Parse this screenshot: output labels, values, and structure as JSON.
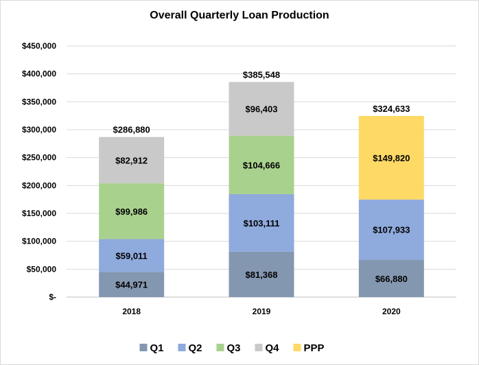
{
  "chart_data": {
    "type": "bar",
    "stacked": true,
    "title": "Overall Quarterly Loan Production",
    "categories": [
      "2018",
      "2019",
      "2020"
    ],
    "ylim": [
      0,
      450000
    ],
    "yticks": [
      0,
      50000,
      100000,
      150000,
      200000,
      250000,
      300000,
      350000,
      400000,
      450000
    ],
    "ytick_labels": [
      "$-",
      "$50,000",
      "$100,000",
      "$150,000",
      "$200,000",
      "$250,000",
      "$300,000",
      "$350,000",
      "$400,000",
      "$450,000"
    ],
    "grid": true,
    "legend_position": "bottom",
    "series": [
      {
        "name": "Q1",
        "color": "#8497B0",
        "values": [
          44971,
          81368,
          66880
        ],
        "labels": [
          "$44,971",
          "$81,368",
          "$66,880"
        ]
      },
      {
        "name": "Q2",
        "color": "#8FAADC",
        "values": [
          59011,
          103111,
          107933
        ],
        "labels": [
          "$59,011",
          "$103,111",
          "$107,933"
        ]
      },
      {
        "name": "Q3",
        "color": "#A9D18E",
        "values": [
          99986,
          104666,
          null
        ],
        "labels": [
          "$99,986",
          "$104,666",
          ""
        ]
      },
      {
        "name": "Q4",
        "color": "#C9C9C9",
        "values": [
          82912,
          96403,
          null
        ],
        "labels": [
          "$82,912",
          "$96,403",
          ""
        ]
      },
      {
        "name": "PPP",
        "color": "#FFD966",
        "values": [
          null,
          null,
          149820
        ],
        "labels": [
          "",
          "",
          "$149,820"
        ]
      }
    ],
    "totals": [
      286880,
      385548,
      324633
    ],
    "total_labels": [
      "$286,880",
      "$385,548",
      "$324,633"
    ]
  }
}
